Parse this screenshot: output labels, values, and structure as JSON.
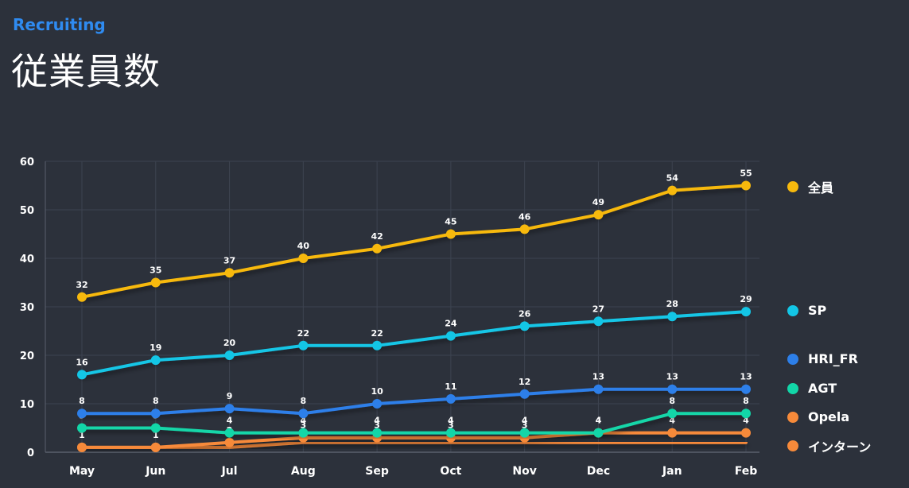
{
  "header": {
    "subtitle": "Recruiting",
    "title": "従業員数"
  },
  "chart_data": {
    "type": "line",
    "categories": [
      "May",
      "Jun",
      "Jul",
      "Aug",
      "Sep",
      "Oct",
      "Nov",
      "Dec",
      "Jan",
      "Feb"
    ],
    "ylim": [
      0,
      60
    ],
    "yticks": [
      0,
      10,
      20,
      30,
      40,
      50,
      60
    ],
    "grid": true,
    "legend_position": "right",
    "series": [
      {
        "name": "全員",
        "color": "#f7b90d",
        "values": [
          32,
          35,
          37,
          40,
          42,
          45,
          46,
          49,
          54,
          55
        ]
      },
      {
        "name": "SP",
        "color": "#13c6e6",
        "values": [
          16,
          19,
          20,
          22,
          22,
          24,
          26,
          27,
          28,
          29
        ]
      },
      {
        "name": "HRI_FR",
        "color": "#2d7fe9",
        "values": [
          8,
          8,
          9,
          8,
          10,
          11,
          12,
          13,
          13,
          13
        ]
      },
      {
        "name": "AGT",
        "color": "#12d6a8",
        "values": [
          5,
          5,
          4,
          4,
          4,
          4,
          4,
          4,
          8,
          8
        ]
      },
      {
        "name": "Opela",
        "color": "#f78a3a",
        "values": [
          1,
          1,
          2,
          3,
          3,
          3,
          3,
          4,
          4,
          4
        ]
      },
      {
        "name": "インターン",
        "color": "#f78a3a",
        "values": [
          1,
          1,
          1,
          2,
          2,
          2,
          2,
          2,
          2,
          2
        ]
      }
    ]
  }
}
